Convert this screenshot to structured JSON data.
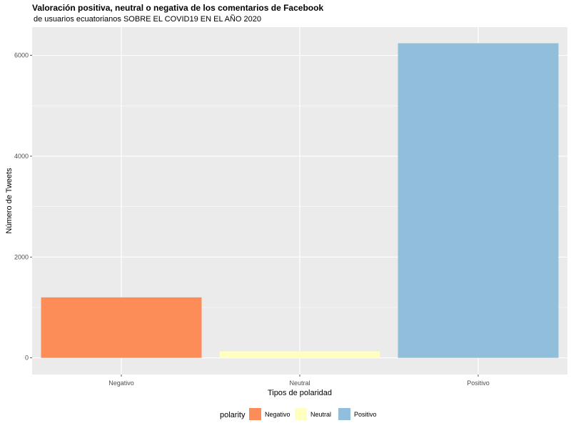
{
  "chart_data": {
    "type": "bar",
    "title": "Valoración positiva, neutral o negativa de los comentarios de Facebook",
    "subtitle": "de usuarios ecuatorianos SOBRE EL COVID19 EN EL AÑO 2020",
    "xlabel": "Tipos de polaridad",
    "ylabel": "Número de Tweets",
    "categories": [
      "Negativo",
      "Neutral",
      "Positivo"
    ],
    "values": [
      1200,
      130,
      6240
    ],
    "colors": [
      "#FC8D59",
      "#FFFFBF",
      "#91BFDB"
    ],
    "ylim": [
      -330,
      6560
    ],
    "yticks": [
      0,
      2000,
      4000,
      6000
    ],
    "grid": true,
    "panel_background": "#EBEBEB",
    "legend": {
      "title": "polarity",
      "placement": "bottom",
      "entries": [
        "Negativo",
        "Neutral",
        "Positivo"
      ]
    }
  }
}
